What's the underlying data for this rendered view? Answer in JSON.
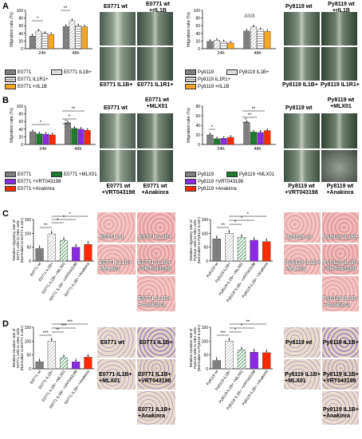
{
  "panels": {
    "A": {
      "letter": "A"
    },
    "B": {
      "letter": "B"
    },
    "C": {
      "letter": "C"
    },
    "D": {
      "letter": "D"
    }
  },
  "colors": {
    "e0771": "#7f7f7f",
    "e0771_il1b": "#d9d9d9",
    "e0771_il1r1": "#eeeeee",
    "rIL1B": "#f5a623",
    "mlx01": "#1e7b2e",
    "vrt": "#8a2be2",
    "anakinra": "#ff2a00"
  },
  "chart_data": [
    {
      "id": "A-left",
      "type": "bar",
      "ylabel": "Migration rate (%)",
      "ylim": [
        0,
        100
      ],
      "yticks": [
        0,
        20,
        40,
        60,
        80,
        100
      ],
      "categories": [
        "24h",
        "48h"
      ],
      "series": [
        {
          "name": "E0771",
          "values": [
            33,
            58
          ]
        },
        {
          "name": "E0771 IL1B+",
          "values": [
            46,
            73
          ]
        },
        {
          "name": "E0771 IL1R1+",
          "values": [
            40,
            60
          ]
        },
        {
          "name": "E0771 +rIL1B",
          "values": [
            37,
            57
          ]
        }
      ],
      "annotations": [
        "*",
        "**"
      ]
    },
    {
      "id": "A-right",
      "type": "bar",
      "ylabel": "Migration rate (%)",
      "ylim": [
        0,
        100
      ],
      "yticks": [
        0,
        20,
        40,
        60,
        80,
        100
      ],
      "categories": [
        "24h",
        "48h"
      ],
      "series": [
        {
          "name": "Py8119",
          "values": [
            19,
            46
          ]
        },
        {
          "name": "Py8119 IL1B+",
          "values": [
            22,
            57
          ]
        },
        {
          "name": "Py8119 IL1R1+",
          "values": [
            18,
            50
          ]
        },
        {
          "name": "Py8119 +rIL1B",
          "values": [
            15,
            45
          ]
        }
      ],
      "annotations": [
        "0.0775"
      ]
    },
    {
      "id": "B-left",
      "type": "bar",
      "ylabel": "Migration rate (%)",
      "ylim": [
        0,
        100
      ],
      "yticks": [
        0,
        20,
        40,
        60,
        80,
        100
      ],
      "categories": [
        "24h",
        "48h"
      ],
      "series": [
        {
          "name": "E0771",
          "values": [
            33,
            57
          ]
        },
        {
          "name": "E0771 +MLX01",
          "values": [
            28,
            42
          ]
        },
        {
          "name": "E0771 +VRT043198",
          "values": [
            27,
            40
          ]
        },
        {
          "name": "E0771 +Anakinra",
          "values": [
            25,
            37
          ]
        }
      ],
      "annotations": [
        "*",
        "*",
        "*",
        "**"
      ]
    },
    {
      "id": "B-right",
      "type": "bar",
      "ylabel": "Migration rate (%)",
      "ylim": [
        0,
        80
      ],
      "yticks": [
        0,
        20,
        40,
        60,
        80
      ],
      "categories": [
        "24h",
        "48h"
      ],
      "series": [
        {
          "name": "Py8119",
          "values": [
            20,
            46
          ]
        },
        {
          "name": "Py8119 +MLX01",
          "values": [
            12,
            26
          ]
        },
        {
          "name": "Py8119 +VRT043198",
          "values": [
            13,
            25
          ]
        },
        {
          "name": "Py8119 +Anakinra",
          "values": [
            15,
            29
          ]
        }
      ],
      "annotations": [
        "*",
        "*",
        "**",
        "**"
      ]
    },
    {
      "id": "C-left",
      "type": "bar",
      "ylabel": "Relative migratory rate of E0771 cells to OB1 cells (Normalize to E0771 IL1B+)",
      "ylim": [
        0,
        150
      ],
      "yticks": [
        0,
        50,
        100,
        150
      ],
      "categories": [
        "E0771 wt",
        "E0771 IL1B+",
        "E0771 IL1B+ +MLX01",
        "E0771 IL1B+ +VRT043198",
        "E0771 IL1B+ +Anakinra"
      ],
      "values": [
        45,
        98,
        75,
        50,
        60
      ],
      "annotations": [
        "**",
        "*",
        "*",
        "*"
      ]
    },
    {
      "id": "C-right",
      "type": "bar",
      "ylabel": "Relative migratory rate of Py8119 cells to OB1 cells (Normalize to Py8119 IL1B+)",
      "ylim": [
        0,
        150
      ],
      "yticks": [
        0,
        50,
        100,
        150
      ],
      "categories": [
        "Py8119 wt",
        "Py8119 IL1B+",
        "Py8119 IL1B+ +MLX01",
        "Py8119 IL1B+ +VRT043198",
        "Py8119 IL1B+ +Anakinra"
      ],
      "values": [
        80,
        100,
        85,
        75,
        70
      ],
      "annotations": [
        "**",
        "*",
        "*",
        "*"
      ]
    },
    {
      "id": "D-left",
      "type": "bar",
      "ylabel": "Relative invasive rate of E0771 cells to OB1 cells (Normalize to E0771 IL1B+)",
      "ylim": [
        0,
        150
      ],
      "yticks": [
        0,
        50,
        100,
        150
      ],
      "categories": [
        "E0771 wt",
        "E0771 IL1B+",
        "E0771 IL1B+ +MLX01",
        "E0771 IL1B+ +VRT043198",
        "E0771 IL1B+ +Anakinra"
      ],
      "values": [
        25,
        100,
        40,
        25,
        42
      ],
      "annotations": [
        "***",
        "**",
        "***",
        "***"
      ]
    },
    {
      "id": "D-right",
      "type": "bar",
      "ylabel": "Relative invasive rate of Py8119 cells to OB1 cells (Normalize to Py8119 IL1B+)",
      "ylim": [
        0,
        150
      ],
      "yticks": [
        0,
        50,
        100,
        150
      ],
      "categories": [
        "Py8119 wt",
        "Py8119 IL1B+",
        "Py8119 IL1B+ +MLX01",
        "Py8119 IL1B+ +VRT043198",
        "Py8119 IL1B+ +Anakinra"
      ],
      "values": [
        30,
        100,
        68,
        60,
        58
      ],
      "annotations": [
        "***",
        "*",
        "*",
        "**"
      ]
    }
  ],
  "images": {
    "A_left": [
      "E0771 wt",
      "E0771 wt +rIL1B",
      "E0771 IL1B+",
      "E0771 IL1R1+"
    ],
    "A_right": [
      "Py8119 wt",
      "Py8119 wt +rIL1B",
      "Py8119 IL1B+",
      "Py8119 IL1R1+"
    ],
    "B_left": [
      "E0771 wt",
      "E0771 wt +MLX01",
      "E0771 wt +VRT043198",
      "E0771 wt +Anakinra"
    ],
    "B_right": [
      "Py8119 wt",
      "Py8119 wt +MLX01",
      "Py8119 wt +VRT043198",
      "Py8119 wt +Anakinra"
    ],
    "C_left": [
      "E0771 wt",
      "E0771 IL1B+",
      "E0771 IL1B+ +MLX01",
      "E0771 IL1B+ +VRT043198",
      "E0771 IL1B+ +Anakinra"
    ],
    "C_right": [
      "Py8119 wt",
      "Py8119 IL1B+",
      "Py8119 IL1B+ +MLX01",
      "Py8119 IL1B+ +VRT043198",
      "Py8119 IL1B+ +Anakinra"
    ],
    "D_left": [
      "E0771 wt",
      "E0771 IL1B+",
      "E0771 IL1B+ +MLX01",
      "E0771 IL1B+ +VRT043198",
      "E0771 IL1B+ +Anakinra"
    ],
    "D_right": [
      "Py8119 wt",
      "Py8119 IL1B+",
      "Py8119 IL1B+ +MLX01",
      "Py8119 IL1B+ +VRT043198",
      "Py8119 IL1B+ +Anakinra"
    ]
  }
}
